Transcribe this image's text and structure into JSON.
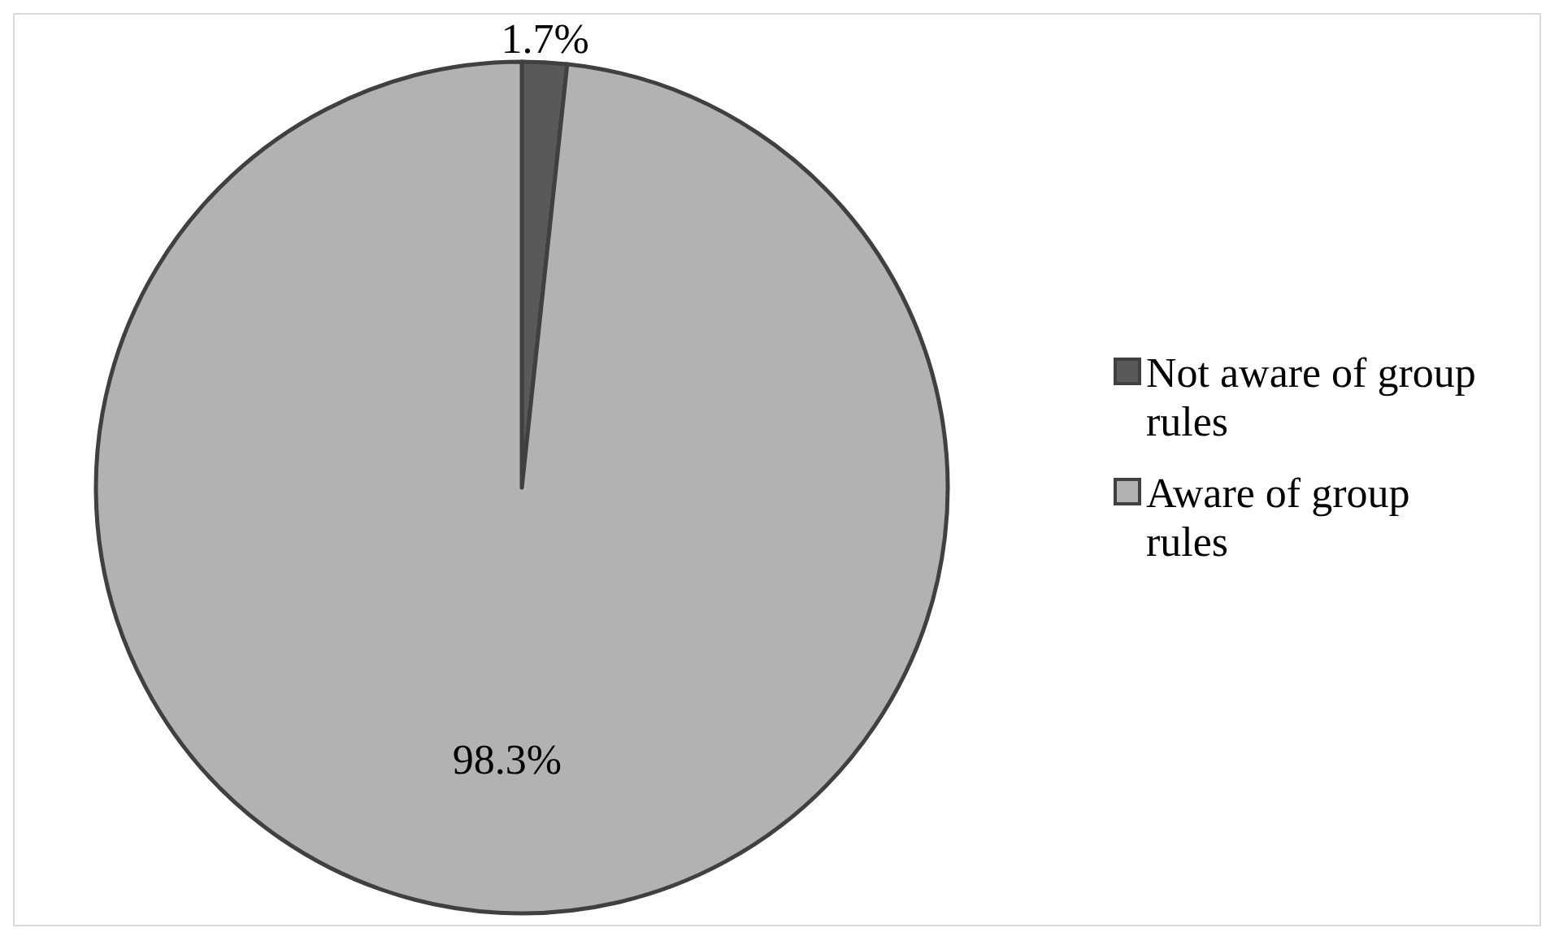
{
  "chart_data": {
    "type": "pie",
    "categories": [
      "Not aware of group rules",
      "Aware of group rules"
    ],
    "values": [
      1.7,
      98.3
    ],
    "colors": [
      "#595959",
      "#b2b2b2"
    ],
    "value_labels": [
      "1.7%",
      "98.3%"
    ],
    "legend": "right"
  }
}
